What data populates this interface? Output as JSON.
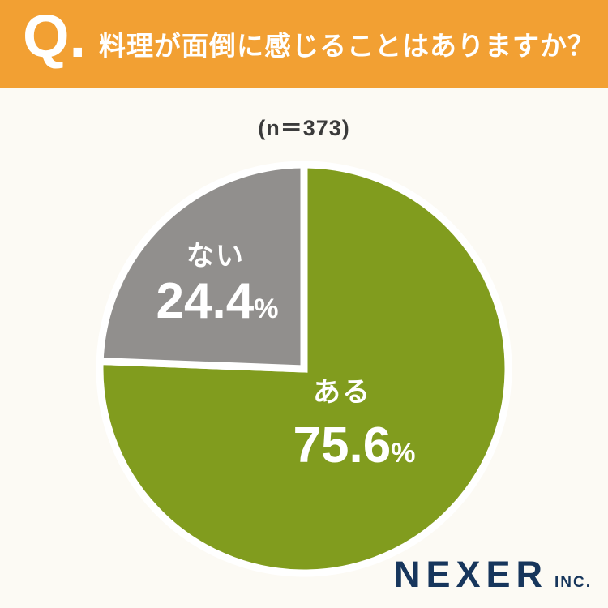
{
  "header": {
    "q_label": "Q.",
    "question": "料理が面倒に感じることはありますか？",
    "bg_color": "#F2A033",
    "text_color": "#FFFFFF"
  },
  "sample_label": "(n＝373)",
  "chart_data": {
    "type": "pie",
    "title": "料理が面倒に感じることはありますか？",
    "sample_n": 373,
    "labels": [
      "ある",
      "ない"
    ],
    "values": [
      75.6,
      24.4
    ],
    "value_display": [
      "75.6",
      "24.4"
    ],
    "unit": "%",
    "colors": [
      "#819C1E",
      "#918F8D"
    ],
    "label_text_color": "#FFFFFF",
    "separator_color": "#FFFFFF",
    "start_angle_deg": 0,
    "direction": "clockwise",
    "legend_position": "inside"
  },
  "footer": {
    "brand": "NEXER",
    "brand_suffix": "INC.",
    "brand_color": "#17365C"
  },
  "colors": {
    "background": "#FCFAF4",
    "header_orange": "#F2A033",
    "pie_green": "#819C1E",
    "pie_gray": "#918F8D",
    "navy": "#17365C",
    "sample_text": "#3B3B3B"
  }
}
